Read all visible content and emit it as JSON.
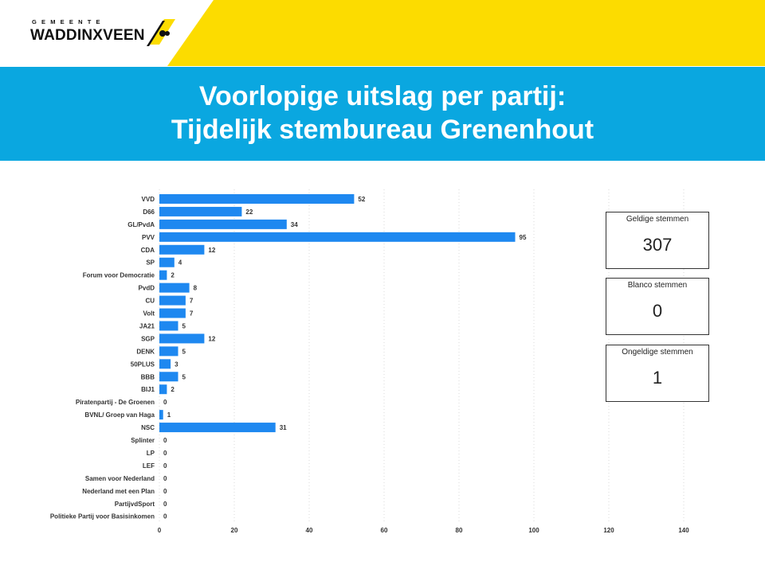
{
  "logo": {
    "small_text": "GEMEENTE",
    "big_text": "WADDINXVEEN"
  },
  "colors": {
    "yellow": "#fcdc00",
    "blue_band": "#0aa7e0",
    "bar": "#1e88f0",
    "text_dark": "#222222"
  },
  "title": {
    "line1": "Voorlopige uitslag per partij:",
    "line2": "Tijdelijk stembureau Grenenhout"
  },
  "cards": [
    {
      "label": "Geldige stemmen",
      "value": "307"
    },
    {
      "label": "Blanco stemmen",
      "value": "0"
    },
    {
      "label": "Ongeldige stemmen",
      "value": "1"
    }
  ],
  "chart_data": {
    "type": "bar",
    "orientation": "horizontal",
    "categories": [
      "VVD",
      "D66",
      "GL/PvdA",
      "PVV",
      "CDA",
      "SP",
      "Forum voor Democratie",
      "PvdD",
      "CU",
      "Volt",
      "JA21",
      "SGP",
      "DENK",
      "50PLUS",
      "BBB",
      "BIJ1",
      "Piratenpartij - De Groenen",
      "BVNL/ Groep van Haga",
      "NSC",
      "Splinter",
      "LP",
      "LEF",
      "Samen voor Nederland",
      "Nederland met een Plan",
      "PartijvdSport",
      "Politieke Partij voor Basisinkomen"
    ],
    "values": [
      52,
      22,
      34,
      95,
      12,
      4,
      2,
      8,
      7,
      7,
      5,
      12,
      5,
      3,
      5,
      2,
      0,
      1,
      31,
      0,
      0,
      0,
      0,
      0,
      0,
      0
    ],
    "xlim": [
      0,
      140
    ],
    "xticks": [
      0,
      20,
      40,
      60,
      80,
      100,
      120,
      140
    ],
    "grid": "vertical dotted"
  }
}
